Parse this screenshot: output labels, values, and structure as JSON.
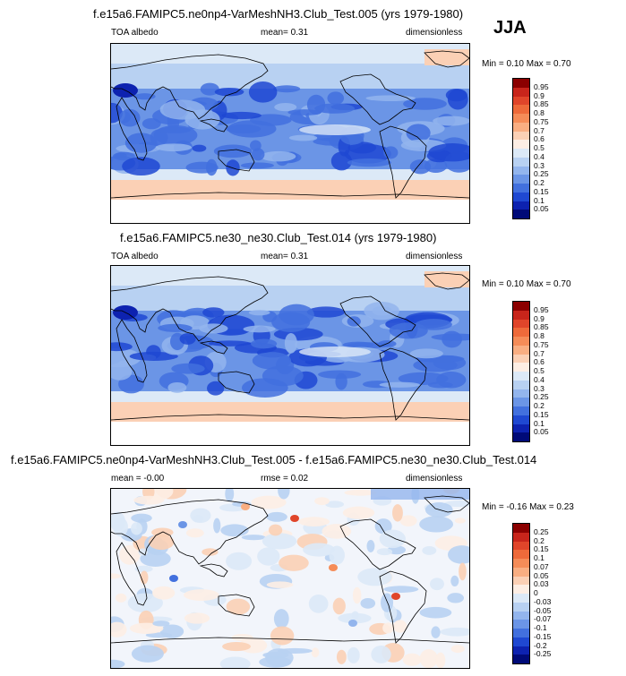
{
  "season": "JJA",
  "panels": [
    {
      "title": "f.e15a6.FAMIPC5.ne0np4-VarMeshNH3.Club_Test.005 (yrs 1979-1980)",
      "left": "TOA albedo",
      "center": "mean=  0.31",
      "right": "dimensionless",
      "range": "Min =  0.10 Max =  0.70",
      "colorbar": {
        "labels": [
          "0.95",
          "0.9",
          "0.85",
          "0.8",
          "0.75",
          "0.7",
          "0.6",
          "0.5",
          "0.4",
          "0.3",
          "0.25",
          "0.2",
          "0.15",
          "0.1",
          "0.05"
        ],
        "colors": [
          "#8b0000",
          "#c8251b",
          "#e0452a",
          "#ee6a3a",
          "#f58c58",
          "#f9ae82",
          "#fbd0b5",
          "#fdeee4",
          "#dce9f7",
          "#b8d1f2",
          "#93b5ed",
          "#6b95e6",
          "#4270de",
          "#1f48d2",
          "#0d22b0",
          "#000a78"
        ]
      }
    },
    {
      "title": "f.e15a6.FAMIPC5.ne30_ne30.Club_Test.014 (yrs 1979-1980)",
      "left": "TOA albedo",
      "center": "mean=  0.31",
      "right": "dimensionless",
      "range": "Min =  0.10 Max =  0.70",
      "colorbar": {
        "labels": [
          "0.95",
          "0.9",
          "0.85",
          "0.8",
          "0.75",
          "0.7",
          "0.6",
          "0.5",
          "0.4",
          "0.3",
          "0.25",
          "0.2",
          "0.15",
          "0.1",
          "0.05"
        ],
        "colors": [
          "#8b0000",
          "#c8251b",
          "#e0452a",
          "#ee6a3a",
          "#f58c58",
          "#f9ae82",
          "#fbd0b5",
          "#fdeee4",
          "#dce9f7",
          "#b8d1f2",
          "#93b5ed",
          "#6b95e6",
          "#4270de",
          "#1f48d2",
          "#0d22b0",
          "#000a78"
        ]
      }
    },
    {
      "title": "f.e15a6.FAMIPC5.ne0np4-VarMeshNH3.Club_Test.005 - f.e15a6.FAMIPC5.ne30_ne30.Club_Test.014",
      "left": "mean = -0.00",
      "center": "rmse =  0.02",
      "right": "dimensionless",
      "range": "Min = -0.16 Max =  0.23",
      "colorbar": {
        "labels": [
          "0.25",
          "0.2",
          "0.15",
          "0.1",
          "0.07",
          "0.05",
          "0.03",
          "0",
          "-0.03",
          "-0.05",
          "-0.07",
          "-0.1",
          "-0.15",
          "-0.2",
          "-0.25"
        ],
        "colors": [
          "#8b0000",
          "#c8251b",
          "#e0452a",
          "#ee6a3a",
          "#f58c58",
          "#f9ae82",
          "#fbd0b5",
          "#fdeee4",
          "#dce9f7",
          "#b8d1f2",
          "#93b5ed",
          "#6b95e6",
          "#4270de",
          "#1f48d2",
          "#0d22b0",
          "#000a78"
        ]
      }
    }
  ]
}
